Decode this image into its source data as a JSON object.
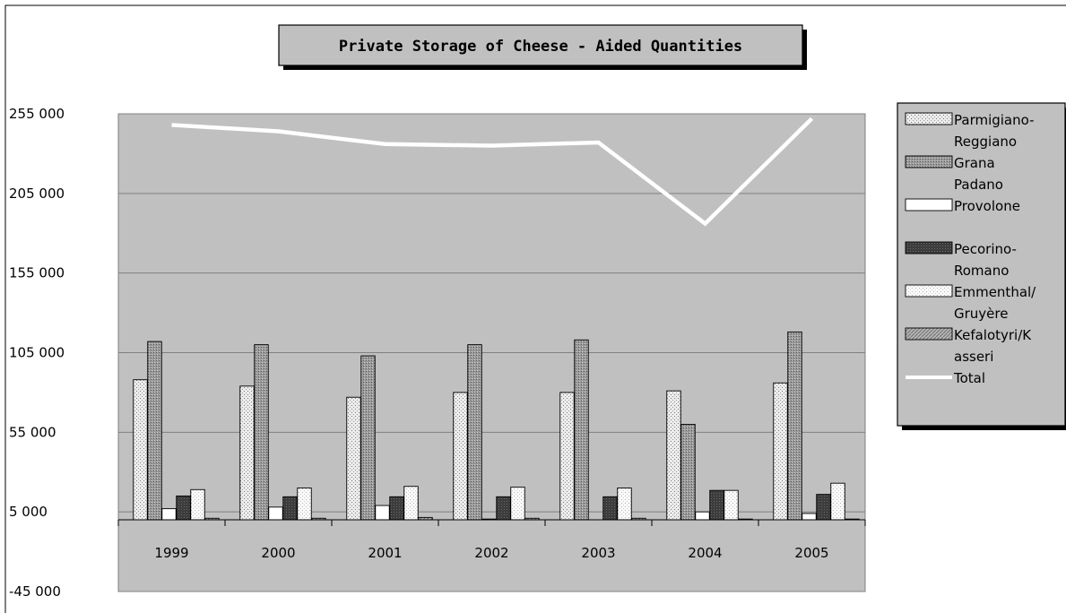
{
  "chart_data": {
    "type": "bar",
    "title": "Private Storage of Cheese - Aided Quantities",
    "xlabel": "",
    "ylabel": "",
    "categories": [
      "1999",
      "2000",
      "2001",
      "2002",
      "2003",
      "2004",
      "2005"
    ],
    "y_ticks": [
      "255 000",
      "205 000",
      "155 000",
      "105 000",
      "55 000",
      "5 000",
      "-45 000"
    ],
    "ylim": [
      -45000,
      255000
    ],
    "grid": true,
    "legend_position": "right",
    "series": [
      {
        "name": "Parmigiano-Reggiano",
        "legend_lines": [
          "Parmigiano-",
          "Reggiano"
        ],
        "type": "bar",
        "fill": "sparse-dots",
        "values": [
          88000,
          84000,
          77000,
          80000,
          80000,
          81000,
          86000
        ]
      },
      {
        "name": "Grana Padano",
        "legend_lines": [
          "Grana",
          "Padano"
        ],
        "type": "bar",
        "fill": "grey-dense",
        "values": [
          112000,
          110000,
          103000,
          110000,
          113000,
          60000,
          118000
        ]
      },
      {
        "name": "Provolone",
        "legend_lines": [
          "Provolone"
        ],
        "type": "bar",
        "fill": "white",
        "values": [
          7000,
          8000,
          9000,
          500,
          0,
          5000,
          4000
        ]
      },
      {
        "name": "Pecorino-Romano",
        "legend_lines": [
          "Pecorino-",
          "Romano"
        ],
        "type": "bar",
        "fill": "dark",
        "values": [
          15000,
          14500,
          14500,
          14500,
          14500,
          18500,
          16000
        ]
      },
      {
        "name": "Emmenthal/ Gruyère",
        "legend_lines": [
          "Emmenthal/",
          "Gruyère"
        ],
        "type": "bar",
        "fill": "white-dots",
        "values": [
          19000,
          20000,
          21000,
          20500,
          20000,
          18500,
          23000
        ]
      },
      {
        "name": "Kefalotyri/Kasseri",
        "legend_lines": [
          "Kefalotyri/K",
          "asseri"
        ],
        "type": "bar",
        "fill": "grey-hatch",
        "values": [
          1000,
          1000,
          1500,
          1000,
          1000,
          500,
          500
        ]
      },
      {
        "name": "Total",
        "legend_lines": [
          "Total"
        ],
        "type": "line",
        "color": "#ffffff",
        "values": [
          248000,
          244000,
          236000,
          235000,
          237000,
          186000,
          252000
        ]
      }
    ],
    "colors": {
      "plot_area": "#c0c0c0",
      "page_background": "#ffffff",
      "gridline": "#808080",
      "total_line": "#ffffff",
      "title_box": "#c0c0c0",
      "legend_box": "#c0c0c0"
    }
  }
}
